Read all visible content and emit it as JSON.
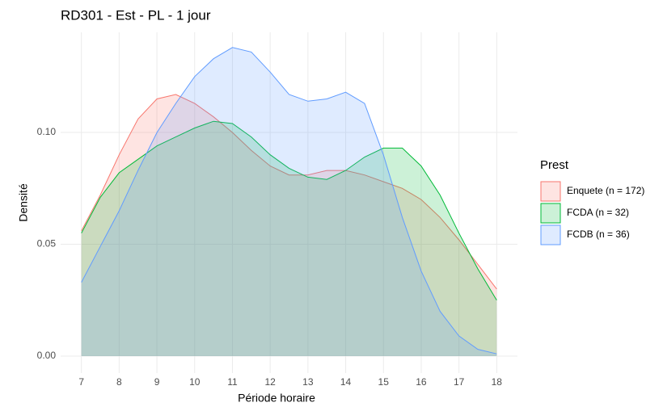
{
  "chart_data": {
    "type": "area",
    "title": "RD301 - Est - PL - 1 jour",
    "x_label": "Période horaire",
    "y_label": "Densité",
    "legend_title": "Prest",
    "legend_position": "right",
    "grid": true,
    "x": [
      7,
      7.5,
      8,
      8.5,
      9,
      9.5,
      10,
      10.5,
      11,
      11.5,
      12,
      12.5,
      13,
      13.5,
      14,
      14.5,
      15,
      15.5,
      16,
      16.5,
      17,
      17.5,
      18
    ],
    "series": [
      {
        "name": "Enquete (n = 172)",
        "color": "#F8766D",
        "values": [
          0.056,
          0.072,
          0.09,
          0.106,
          0.115,
          0.117,
          0.113,
          0.107,
          0.1,
          0.092,
          0.085,
          0.081,
          0.081,
          0.083,
          0.083,
          0.081,
          0.078,
          0.075,
          0.07,
          0.062,
          0.052,
          0.041,
          0.03
        ]
      },
      {
        "name": "FCDA (n = 32)",
        "color": "#00BA38",
        "values": [
          0.055,
          0.071,
          0.082,
          0.088,
          0.094,
          0.098,
          0.102,
          0.105,
          0.104,
          0.098,
          0.09,
          0.084,
          0.08,
          0.079,
          0.083,
          0.089,
          0.093,
          0.093,
          0.085,
          0.072,
          0.055,
          0.039,
          0.025
        ]
      },
      {
        "name": "FCDB (n = 36)",
        "color": "#619CFF",
        "values": [
          0.033,
          0.049,
          0.065,
          0.083,
          0.1,
          0.113,
          0.125,
          0.133,
          0.138,
          0.136,
          0.127,
          0.117,
          0.114,
          0.115,
          0.118,
          0.113,
          0.09,
          0.062,
          0.038,
          0.02,
          0.009,
          0.003,
          0.001
        ]
      }
    ],
    "xlim": [
      6.45,
      18.55
    ],
    "xticks": [
      7,
      8,
      9,
      10,
      11,
      12,
      13,
      14,
      15,
      16,
      17,
      18
    ],
    "ylim": [
      -0.0076,
      0.1448
    ],
    "yticks": [
      {
        "value": 0,
        "label": "0.00"
      },
      {
        "value": 0.05,
        "label": "0.05"
      },
      {
        "value": 0.1,
        "label": "0.10"
      }
    ]
  }
}
